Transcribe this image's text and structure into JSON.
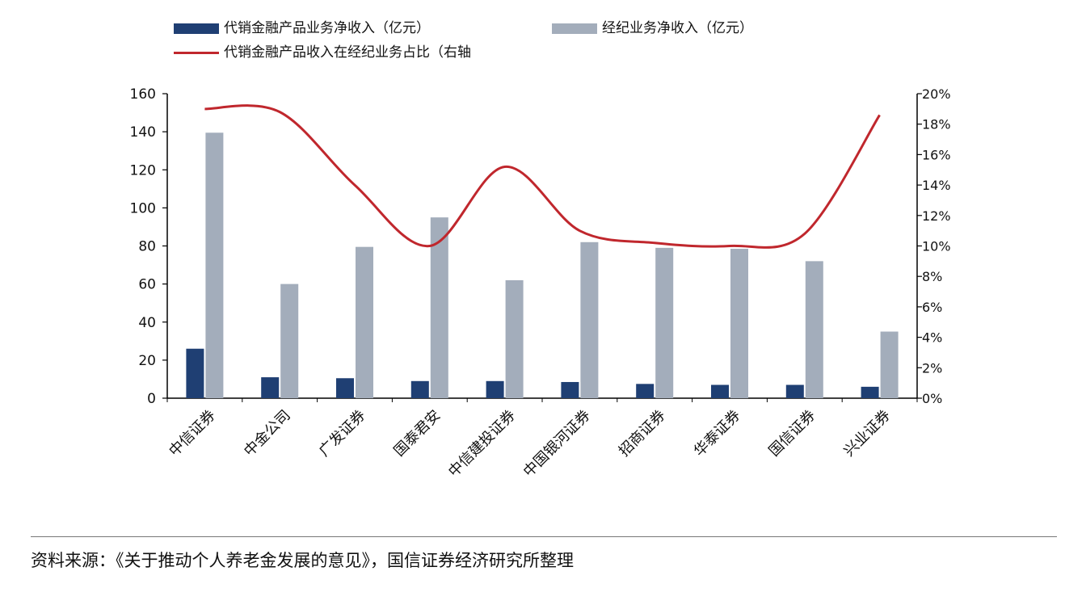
{
  "chart_data": {
    "type": "bar",
    "categories": [
      "中信证券",
      "中金公司",
      "广发证券",
      "国泰君安",
      "中信建投证券",
      "中国银河证券",
      "招商证券",
      "华泰证券",
      "国信证券",
      "兴业证券"
    ],
    "series": [
      {
        "name": "代销金融产品业务净收入（亿元）",
        "type": "bar",
        "axis": "left",
        "color": "#1f3f73",
        "values": [
          26,
          11,
          10.5,
          9,
          9,
          8.5,
          7.5,
          7,
          7,
          6
        ]
      },
      {
        "name": "经纪业务净收入（亿元）",
        "type": "bar",
        "axis": "left",
        "color": "#a3adbb",
        "values": [
          139.5,
          60,
          79.5,
          95,
          62,
          82,
          79,
          78.5,
          72,
          35
        ]
      },
      {
        "name": "代销金融产品收入在经纪业务占比（右轴",
        "type": "line",
        "axis": "right",
        "color": "#c0272d",
        "values": [
          19.0,
          18.8,
          14.0,
          10.0,
          15.2,
          11.0,
          10.2,
          10.0,
          10.8,
          18.6
        ]
      }
    ],
    "left_axis": {
      "min": 0,
      "max": 160,
      "ticks": [
        "0",
        "20",
        "40",
        "60",
        "80",
        "100",
        "120",
        "140",
        "160"
      ]
    },
    "right_axis": {
      "min": 0,
      "max": 20,
      "ticks": [
        "0%",
        "2%",
        "4%",
        "6%",
        "8%",
        "10%",
        "12%",
        "14%",
        "16%",
        "18%",
        "20%"
      ]
    },
    "legend_position": "top-left",
    "grid": false
  },
  "source_note": "资料来源：《关于推动个人养老金发展的意见》，国信证券经济研究所整理"
}
